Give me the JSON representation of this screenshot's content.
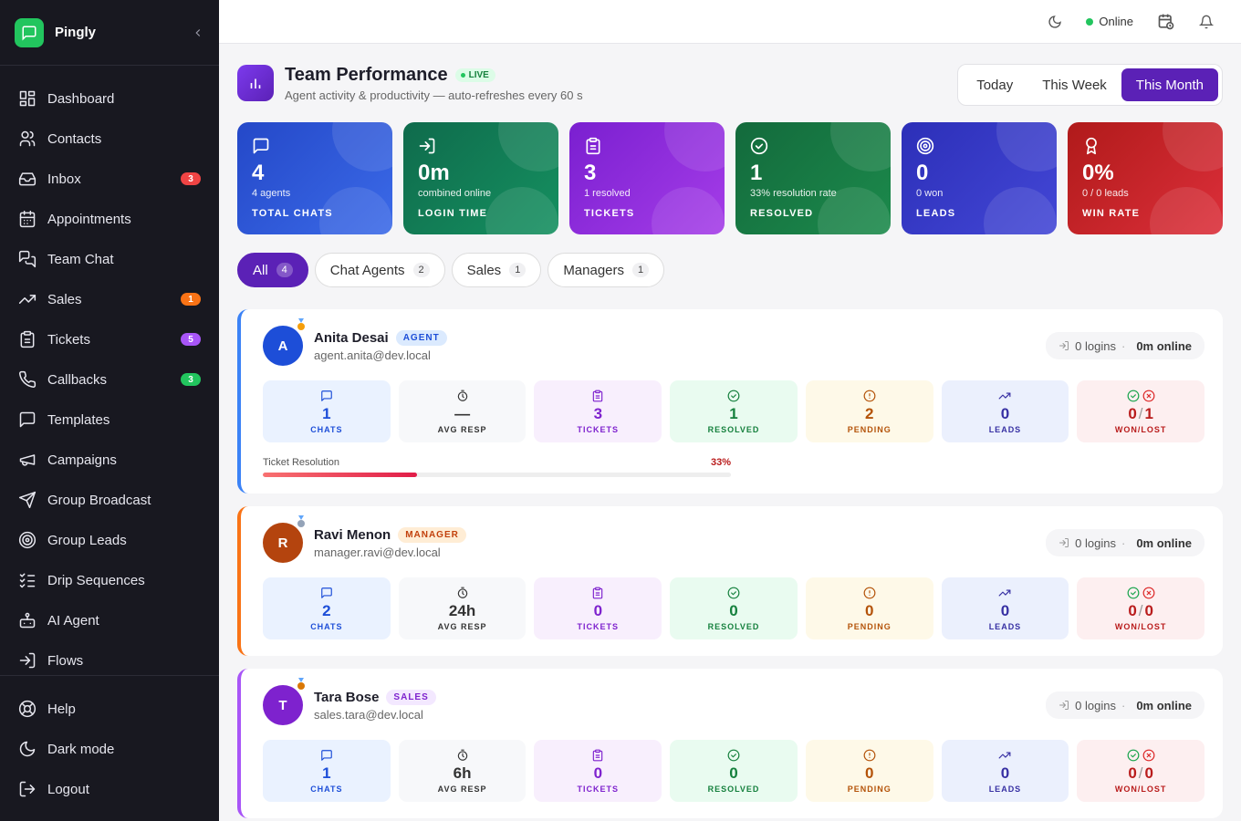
{
  "brand": {
    "name": "Pingly"
  },
  "nav": [
    {
      "label": "Dashboard",
      "icon": "dashboard-icon"
    },
    {
      "label": "Contacts",
      "icon": "users-icon"
    },
    {
      "label": "Inbox",
      "icon": "inbox-icon",
      "badge": "3",
      "badge_color": "#ef4444"
    },
    {
      "label": "Appointments",
      "icon": "calendar-icon"
    },
    {
      "label": "Team Chat",
      "icon": "team-chat-icon"
    },
    {
      "label": "Sales",
      "icon": "trending-up-icon",
      "badge": "1",
      "badge_color": "#f97316"
    },
    {
      "label": "Tickets",
      "icon": "clipboard-icon",
      "badge": "5",
      "badge_color": "#a855f7"
    },
    {
      "label": "Callbacks",
      "icon": "phone-icon",
      "badge": "3",
      "badge_color": "#22c55e"
    },
    {
      "label": "Templates",
      "icon": "message-square-icon"
    },
    {
      "label": "Campaigns",
      "icon": "megaphone-icon"
    },
    {
      "label": "Group Broadcast",
      "icon": "send-icon"
    },
    {
      "label": "Group Leads",
      "icon": "target-icon"
    },
    {
      "label": "Drip Sequences",
      "icon": "list-checks-icon"
    },
    {
      "label": "AI Agent",
      "icon": "bot-icon"
    },
    {
      "label": "Flows",
      "icon": "flow-icon"
    }
  ],
  "nav_bottom": [
    {
      "label": "Help",
      "icon": "help-icon"
    },
    {
      "label": "Dark mode",
      "icon": "moon-icon"
    },
    {
      "label": "Logout",
      "icon": "logout-icon"
    }
  ],
  "topbar": {
    "status": "Online"
  },
  "page": {
    "title": "Team Performance",
    "live": "LIVE",
    "subtitle": "Agent activity & productivity — auto-refreshes every 60 s"
  },
  "ranges": [
    {
      "label": "Today"
    },
    {
      "label": "This Week"
    },
    {
      "label": "This Month",
      "active": true
    }
  ],
  "stats": [
    {
      "value": "4",
      "sub": "4 agents",
      "label": "TOTAL CHATS",
      "icon": "chat-icon",
      "from": "#2448c8",
      "to": "#3b6ae8"
    },
    {
      "value": "0m",
      "sub": "combined online",
      "label": "LOGIN TIME",
      "icon": "login-icon",
      "from": "#0f6b4c",
      "to": "#159060"
    },
    {
      "value": "3",
      "sub": "1 resolved",
      "label": "TICKETS",
      "icon": "clipboard-icon",
      "from": "#7a1fd0",
      "to": "#a53de8"
    },
    {
      "value": "1",
      "sub": "33% resolution rate",
      "label": "RESOLVED",
      "icon": "check-circle-icon",
      "from": "#136a3c",
      "to": "#1c8a4c"
    },
    {
      "value": "0",
      "sub": "0 won",
      "label": "LEADS",
      "icon": "target-icon",
      "from": "#2c2fb8",
      "to": "#4347d6"
    },
    {
      "value": "0%",
      "sub": "0 / 0 leads",
      "label": "WIN RATE",
      "icon": "award-icon",
      "from": "#b01a1a",
      "to": "#dc2f3a"
    }
  ],
  "filters": [
    {
      "label": "All",
      "count": "4",
      "active": true
    },
    {
      "label": "Chat Agents",
      "count": "2"
    },
    {
      "label": "Sales",
      "count": "1"
    },
    {
      "label": "Managers",
      "count": "1"
    }
  ],
  "agents": [
    {
      "initial": "A",
      "name": "Anita Desai",
      "role": "AGENT",
      "email": "agent.anita@dev.local",
      "avatar_color": "#1d4ed8",
      "accent": "#3b82f6",
      "role_bg": "#dbeafe",
      "role_color": "#1d4ed8",
      "medal": "#f59e0b",
      "logins": "0 logins",
      "online": "0m online",
      "metrics": {
        "chats": "1",
        "avg": "—",
        "tickets": "3",
        "resolved": "1",
        "pending": "2",
        "leads": "0",
        "won": "0",
        "lost": "1"
      },
      "resolution": {
        "label": "Ticket Resolution",
        "pct": "33%",
        "value": 0.33
      }
    },
    {
      "initial": "R",
      "name": "Ravi Menon",
      "role": "MANAGER",
      "email": "manager.ravi@dev.local",
      "avatar_color": "#b4440e",
      "accent": "#f97316",
      "role_bg": "#ffedd5",
      "role_color": "#c2410c",
      "medal": "#94a3b8",
      "logins": "0 logins",
      "online": "0m online",
      "metrics": {
        "chats": "2",
        "avg": "24h",
        "tickets": "0",
        "resolved": "0",
        "pending": "0",
        "leads": "0",
        "won": "0",
        "lost": "0"
      }
    },
    {
      "initial": "T",
      "name": "Tara Bose",
      "role": "SALES",
      "email": "sales.tara@dev.local",
      "avatar_color": "#7e22ce",
      "accent": "#a855f7",
      "role_bg": "#f3e8ff",
      "role_color": "#7e22ce",
      "medal": "#d97706",
      "logins": "0 logins",
      "online": "0m online",
      "metrics": {
        "chats": "1",
        "avg": "6h",
        "tickets": "0",
        "resolved": "0",
        "pending": "0",
        "leads": "0",
        "won": "0",
        "lost": "0"
      }
    }
  ],
  "metric_labels": {
    "chats": "CHATS",
    "avg": "AVG RESP",
    "tickets": "TICKETS",
    "resolved": "RESOLVED",
    "pending": "PENDING",
    "leads": "LEADS",
    "won": "WON/LOST"
  }
}
